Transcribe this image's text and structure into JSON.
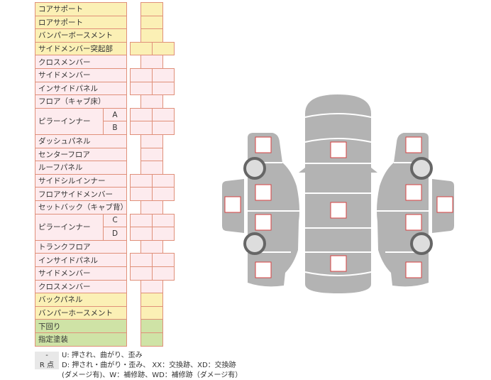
{
  "colors": {
    "yellow": "#fbf0b5",
    "pink": "#fdebee",
    "green": "#cfe3a6",
    "border": "#e0907a",
    "body": "#b3b3b3",
    "marker": "#d94040"
  },
  "rows": [
    {
      "label": "コアサポート",
      "color": "yellow",
      "cells": 1
    },
    {
      "label": "ロアサポート",
      "color": "yellow",
      "cells": 1
    },
    {
      "label": "バンパーボースメント",
      "color": "yellow",
      "cells": 1
    },
    {
      "label": "サイドメンバー突起部",
      "color": "yellow",
      "cells": 2
    },
    {
      "label": "クロスメンバー",
      "color": "pink",
      "cells": 1
    },
    {
      "label": "サイドメンバー",
      "color": "pink",
      "cells": 2
    },
    {
      "label": "インサイドパネル",
      "color": "pink",
      "cells": 2
    },
    {
      "label": "フロア（キャブ床）",
      "color": "pink",
      "cells": 1
    },
    {
      "label": "ピラーインナー",
      "sub": "A",
      "color": "pink",
      "cells": 2,
      "span": 2
    },
    {
      "sub": "B",
      "color": "pink",
      "cells": 2
    },
    {
      "label": "ダッシュパネル",
      "color": "pink",
      "cells": 1
    },
    {
      "label": "センターフロア",
      "color": "pink",
      "cells": 1
    },
    {
      "label": "ルーフパネル",
      "color": "pink",
      "cells": 1
    },
    {
      "label": "サイドシルインナー",
      "color": "pink",
      "cells": 2
    },
    {
      "label": "フロアサイドメンバー",
      "color": "pink",
      "cells": 2
    },
    {
      "label": "セットバック（キャブ背）",
      "color": "pink",
      "cells": 1
    },
    {
      "label": "ピラーインナー",
      "sub": "C",
      "color": "pink",
      "cells": 2,
      "span": 2
    },
    {
      "sub": "D",
      "color": "pink",
      "cells": 2
    },
    {
      "label": "トランクフロア",
      "color": "pink",
      "cells": 1
    },
    {
      "label": "インサイドパネル",
      "color": "pink",
      "cells": 2
    },
    {
      "label": "サイドメンバー",
      "color": "pink",
      "cells": 2
    },
    {
      "label": "クロスメンバー",
      "color": "pink",
      "cells": 1
    },
    {
      "label": "バックパネル",
      "color": "yellow",
      "cells": 1
    },
    {
      "label": "バンパーホースメント",
      "color": "yellow",
      "cells": 1
    },
    {
      "label": "下回り",
      "color": "green",
      "cells": 1
    },
    {
      "label": "指定塗装",
      "color": "green",
      "cells": 1
    }
  ],
  "legend": {
    "key1": "-",
    "text1": "U: 押され、曲がり、歪み",
    "key2": "R 点",
    "text2": "D: 押され・曲がり・歪み、 XX：交換跡、XD：交換跡",
    "text3": "(ダメージ有)、W：補修跡、WD：補修跡（ダメージ有）"
  }
}
